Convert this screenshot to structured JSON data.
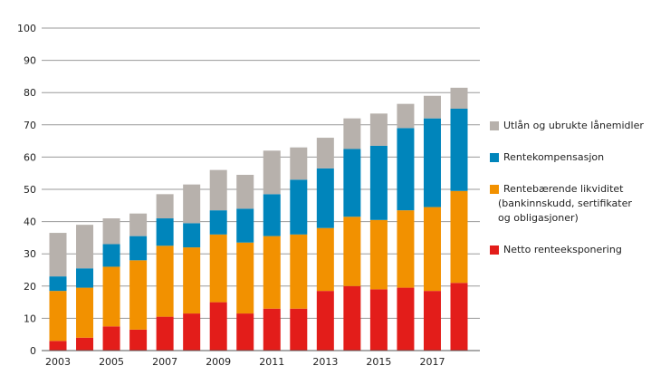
{
  "chart_data": {
    "type": "bar",
    "stacked": true,
    "title": "",
    "xlabel": "",
    "ylabel": "",
    "ylim": [
      0,
      100
    ],
    "yticks": [
      0,
      10,
      20,
      30,
      40,
      50,
      60,
      70,
      80,
      90,
      100
    ],
    "grid": true,
    "legend_position": "right",
    "categories": [
      "2003",
      "2004",
      "2005",
      "2006",
      "2007",
      "2008",
      "2009",
      "2010",
      "2011",
      "2012",
      "2013",
      "2014",
      "2015",
      "2016",
      "2017",
      "2018"
    ],
    "xtick_labels": [
      "2003",
      "2005",
      "2007",
      "2009",
      "2011",
      "2013",
      "2015",
      "2017"
    ],
    "series": [
      {
        "name": "Netto renteeksponering",
        "color": "#e31d1a",
        "values": [
          3,
          4,
          7.5,
          6.5,
          10.5,
          11.5,
          15,
          11.5,
          13,
          13,
          18.5,
          20,
          19,
          19.5,
          18.5,
          21
        ]
      },
      {
        "name": "Rentebærende likviditet\n(bankinnskudd, sertifikater\nog obligasjoner)",
        "color": "#f29100",
        "values": [
          15.5,
          15.5,
          18.5,
          21.5,
          22,
          20.5,
          21,
          22,
          22.5,
          23,
          19.5,
          21.5,
          21.5,
          24,
          26,
          28.5
        ]
      },
      {
        "name": "Rentekompensasjon",
        "color": "#0085bb",
        "values": [
          4.5,
          6,
          7,
          7.5,
          8.5,
          7.5,
          7.5,
          10.5,
          13,
          17,
          18.5,
          21,
          23,
          25.5,
          27.5,
          25.5
        ]
      },
      {
        "name": "Utlån og ubrukte lånemidler",
        "color": "#b7b1ac",
        "values": [
          13.5,
          13.5,
          8,
          7,
          7.5,
          12,
          12.5,
          10.5,
          13.5,
          10,
          9.5,
          9.5,
          10,
          7.5,
          7,
          6.5
        ]
      }
    ]
  }
}
